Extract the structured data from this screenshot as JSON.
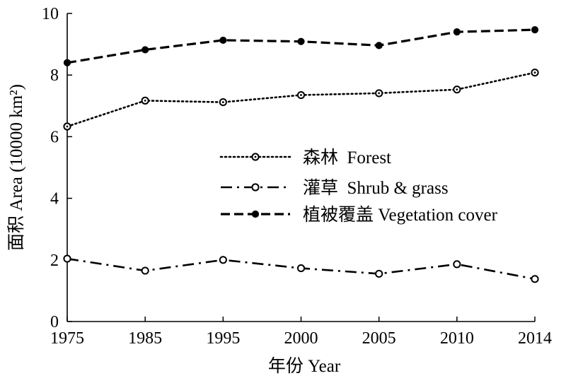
{
  "chart_data": {
    "type": "line",
    "title": "",
    "xlabel": "年份 Year",
    "ylabel": "面积 Area (10000 km²)",
    "categories": [
      "1975",
      "1985",
      "1995",
      "2000",
      "2005",
      "2010",
      "2014"
    ],
    "ylim": [
      0,
      10
    ],
    "yticks": [
      "0",
      "2",
      "4",
      "6",
      "8",
      "10"
    ],
    "grid": false,
    "legend_position": "center-right",
    "series": [
      {
        "name": "森林  Forest",
        "values": [
          6.33,
          7.17,
          7.12,
          7.35,
          7.41,
          7.53,
          8.08
        ],
        "line_style": "dotted",
        "marker": "open-circle-dot"
      },
      {
        "name": "灌草  Shrub & grass",
        "values": [
          2.04,
          1.65,
          2.0,
          1.73,
          1.55,
          1.86,
          1.38
        ],
        "line_style": "dash-dot",
        "marker": "open-circle"
      },
      {
        "name": "植被覆盖 Vegetation cover",
        "values": [
          8.4,
          8.82,
          9.13,
          9.09,
          8.96,
          9.4,
          9.47
        ],
        "line_style": "dashed",
        "marker": "filled-circle"
      }
    ],
    "colors": {
      "line": "#000000",
      "background": "#ffffff"
    }
  }
}
